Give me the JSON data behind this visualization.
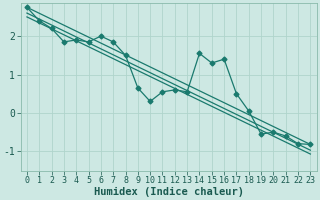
{
  "title": "",
  "xlabel": "Humidex (Indice chaleur)",
  "bg_color": "#cde8e3",
  "grid_color": "#b0d4cc",
  "line_color": "#1a7a6e",
  "spine_color": "#8abaab",
  "tick_color": "#1a5a50",
  "xlim": [
    -0.5,
    23.5
  ],
  "ylim": [
    -1.5,
    2.85
  ],
  "yticks": [
    -1,
    0,
    1,
    2
  ],
  "xticks": [
    0,
    1,
    2,
    3,
    4,
    5,
    6,
    7,
    8,
    9,
    10,
    11,
    12,
    13,
    14,
    15,
    16,
    17,
    18,
    19,
    20,
    21,
    22,
    23
  ],
  "jagged_x": [
    0,
    1,
    2,
    3,
    4,
    5,
    6,
    7,
    8,
    9,
    10,
    11,
    12,
    13,
    14,
    15,
    16,
    17,
    18,
    19,
    20,
    21,
    22,
    23
  ],
  "jagged_y": [
    2.75,
    2.4,
    2.2,
    1.85,
    1.9,
    1.85,
    2.0,
    1.85,
    1.5,
    0.65,
    0.3,
    0.55,
    0.6,
    0.55,
    1.55,
    1.3,
    1.4,
    0.5,
    0.05,
    -0.55,
    -0.5,
    -0.6,
    -0.8,
    -0.82
  ],
  "line1_x": [
    0,
    23
  ],
  "line1_y": [
    2.75,
    -0.82
  ],
  "line2_x": [
    0,
    23
  ],
  "line2_y": [
    2.6,
    -0.97
  ],
  "line3_x": [
    0,
    23
  ],
  "line3_y": [
    2.5,
    -1.07
  ]
}
